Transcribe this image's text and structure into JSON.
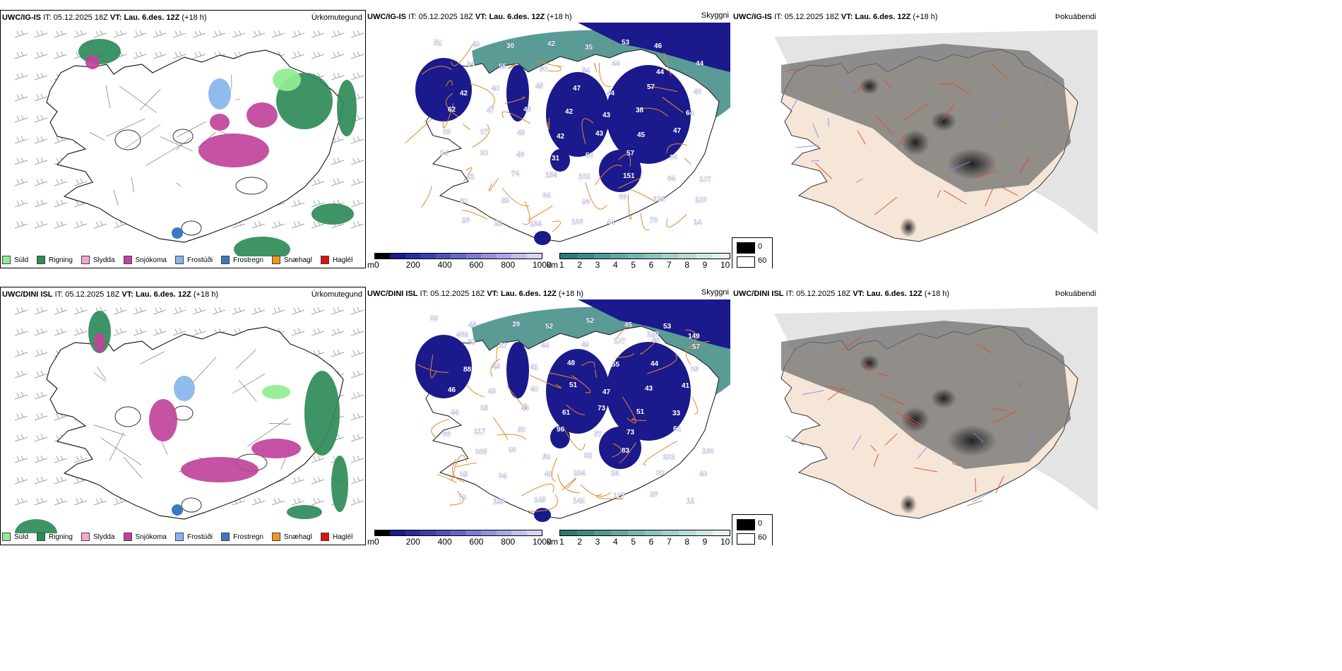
{
  "rows": [
    {
      "model": "UWC/IG-IS",
      "precip": {
        "panel_title": "Úrkomutegund"
      },
      "snow": {
        "panel_title": "Skyggni",
        "labels": [
          "52",
          "49",
          "30",
          "42",
          "35",
          "53",
          "46",
          "44",
          "84",
          "55",
          "50",
          "54",
          "44",
          "44",
          "46",
          "42",
          "40",
          "45",
          "47",
          "44",
          "57",
          "64",
          "62",
          "47",
          "45",
          "42",
          "43",
          "38",
          "47",
          "39",
          "37",
          "48",
          "42",
          "43",
          "45",
          "36",
          "34",
          "30",
          "46",
          "31",
          "53",
          "57",
          "64",
          "107",
          "81",
          "74",
          "154",
          "162",
          "151",
          "196",
          "123",
          "60",
          "89",
          "64",
          "96",
          "66",
          "76",
          "14",
          "26",
          "22",
          "154",
          "136",
          "44"
        ]
      },
      "cloud": {
        "panel_title": "Þokuábendi"
      }
    },
    {
      "model": "UWC/DINI ISL",
      "precip": {
        "panel_title": "Úrkomutegund"
      },
      "snow": {
        "panel_title": "Skyggni",
        "labels": [
          "39",
          "45",
          "39",
          "52",
          "52",
          "45",
          "53",
          "57",
          "59",
          "87",
          "44",
          "49",
          "107",
          "56",
          "35",
          "88",
          "45",
          "41",
          "48",
          "55",
          "44",
          "41",
          "46",
          "43",
          "40",
          "51",
          "47",
          "43",
          "33",
          "44",
          "35",
          "43",
          "61",
          "73",
          "51",
          "61",
          "66",
          "117",
          "53",
          "96",
          "57",
          "73",
          "232",
          "163",
          "365",
          "93",
          "58",
          "92",
          "83",
          "30",
          "40",
          "35",
          "34",
          "41",
          "294",
          "24",
          "26",
          "12",
          "79",
          "185",
          "145",
          "142",
          "127",
          "120",
          "149",
          "468"
        ]
      },
      "cloud": {
        "panel_title": "Þokuábendi"
      }
    }
  ],
  "header": {
    "it_label": "IT:",
    "it_value": "05.12.2025 18Z",
    "vt_label": "VT:",
    "vt_value": "Lau. 6.des. 12Z",
    "lead": "(+18 h)"
  },
  "precip_legend": [
    {
      "label": "Súld",
      "color": "#90ee90"
    },
    {
      "label": "Rigning",
      "color": "#2e8b57"
    },
    {
      "label": "Slydda",
      "color": "#f4a7d0"
    },
    {
      "label": "Snjókoma",
      "color": "#c0439a"
    },
    {
      "label": "Frostúði",
      "color": "#87b5ec"
    },
    {
      "label": "Frostregn",
      "color": "#3a78c2"
    },
    {
      "label": "Snæhagl",
      "color": "#f0961e"
    },
    {
      "label": "Haglél",
      "color": "#e01010"
    }
  ],
  "snow_bar": {
    "unit": "m",
    "ticks": [
      "0",
      "200",
      "400",
      "600",
      "800",
      "1000"
    ],
    "colors": [
      "#000000",
      "#1a1a8c",
      "#2b2b9e",
      "#3d3db0",
      "#5050bd",
      "#6666c8",
      "#7c7cd2",
      "#9292dc",
      "#a8a8e4",
      "#c0c0ec",
      "#d6d6f2"
    ]
  },
  "vis_bar": {
    "unit": "km",
    "ticks": [
      "1",
      "2",
      "3",
      "4",
      "5",
      "6",
      "7",
      "8",
      "9",
      "10"
    ],
    "colors": [
      "#2c7a74",
      "#3d8a84",
      "#4f9a93",
      "#62a8a2",
      "#76b6b0",
      "#8cc3be",
      "#a2cfcb",
      "#b8dbd8",
      "#cee7e5",
      "#e4f2f1"
    ]
  },
  "cloud_legend": {
    "black": "0",
    "white": "60"
  }
}
